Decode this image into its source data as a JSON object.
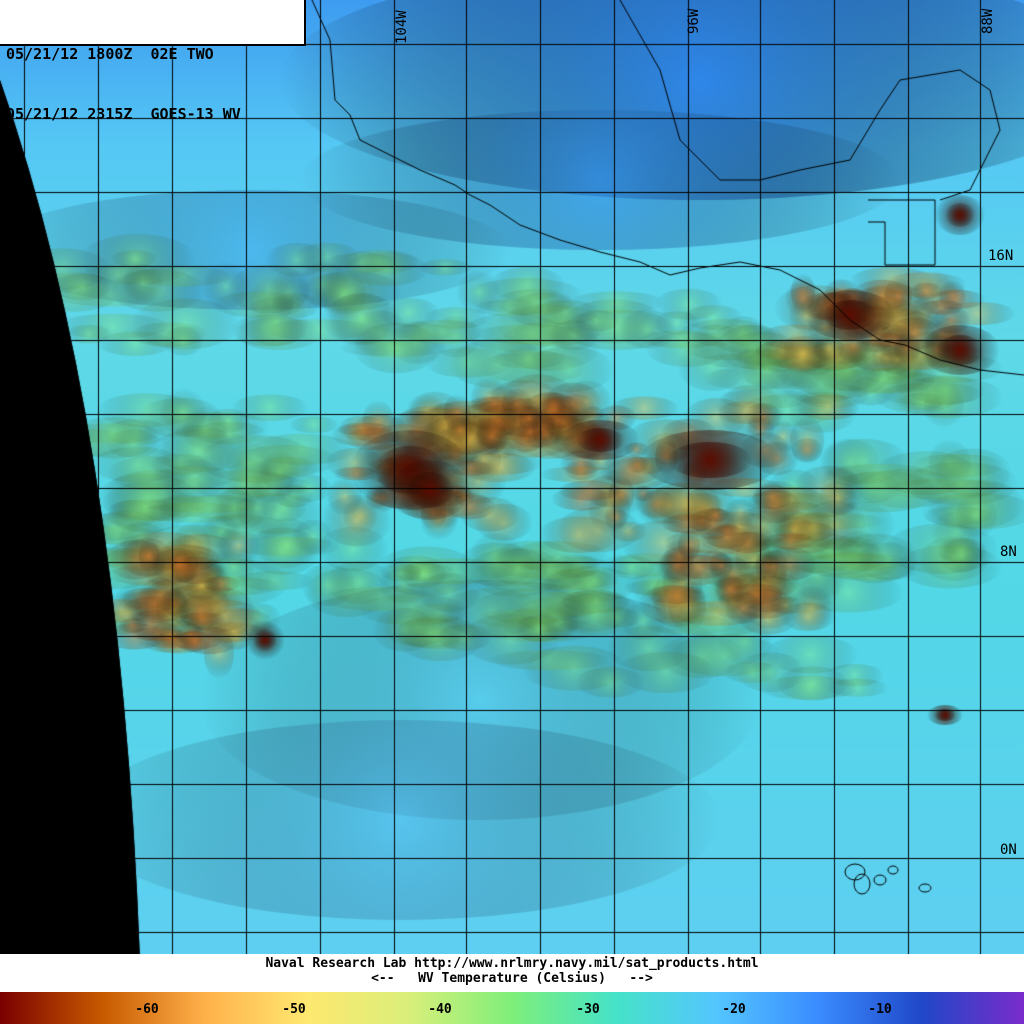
{
  "header": {
    "line1": "05/21/12 1800Z  02E TWO",
    "line2": "05/21/12 2315Z  GOES-13 WV"
  },
  "credit": {
    "line1": "Naval Research Lab http://www.nrlmry.navy.mil/sat_products.html",
    "line2": "<--   WV Temperature (Celsius)   -->"
  },
  "colorbar": {
    "ticks": [
      "-60",
      "-50",
      "-40",
      "-30",
      "-20",
      "-10"
    ],
    "colors": [
      "#7a0000",
      "#c85a00",
      "#ffb14a",
      "#ffe870",
      "#d9ef7a",
      "#7fef7a",
      "#46e3c8",
      "#54c6ff",
      "#3a8cff",
      "#2048c8",
      "#7a2ccb"
    ]
  },
  "grid": {
    "lat_labels": [
      "16N",
      "8N",
      "0N"
    ],
    "lon_labels": [
      "104W",
      "96W",
      "88W"
    ]
  },
  "palette": {
    "disk_edge": "#000000",
    "coast": "#000000",
    "grid_line": "#000000"
  }
}
